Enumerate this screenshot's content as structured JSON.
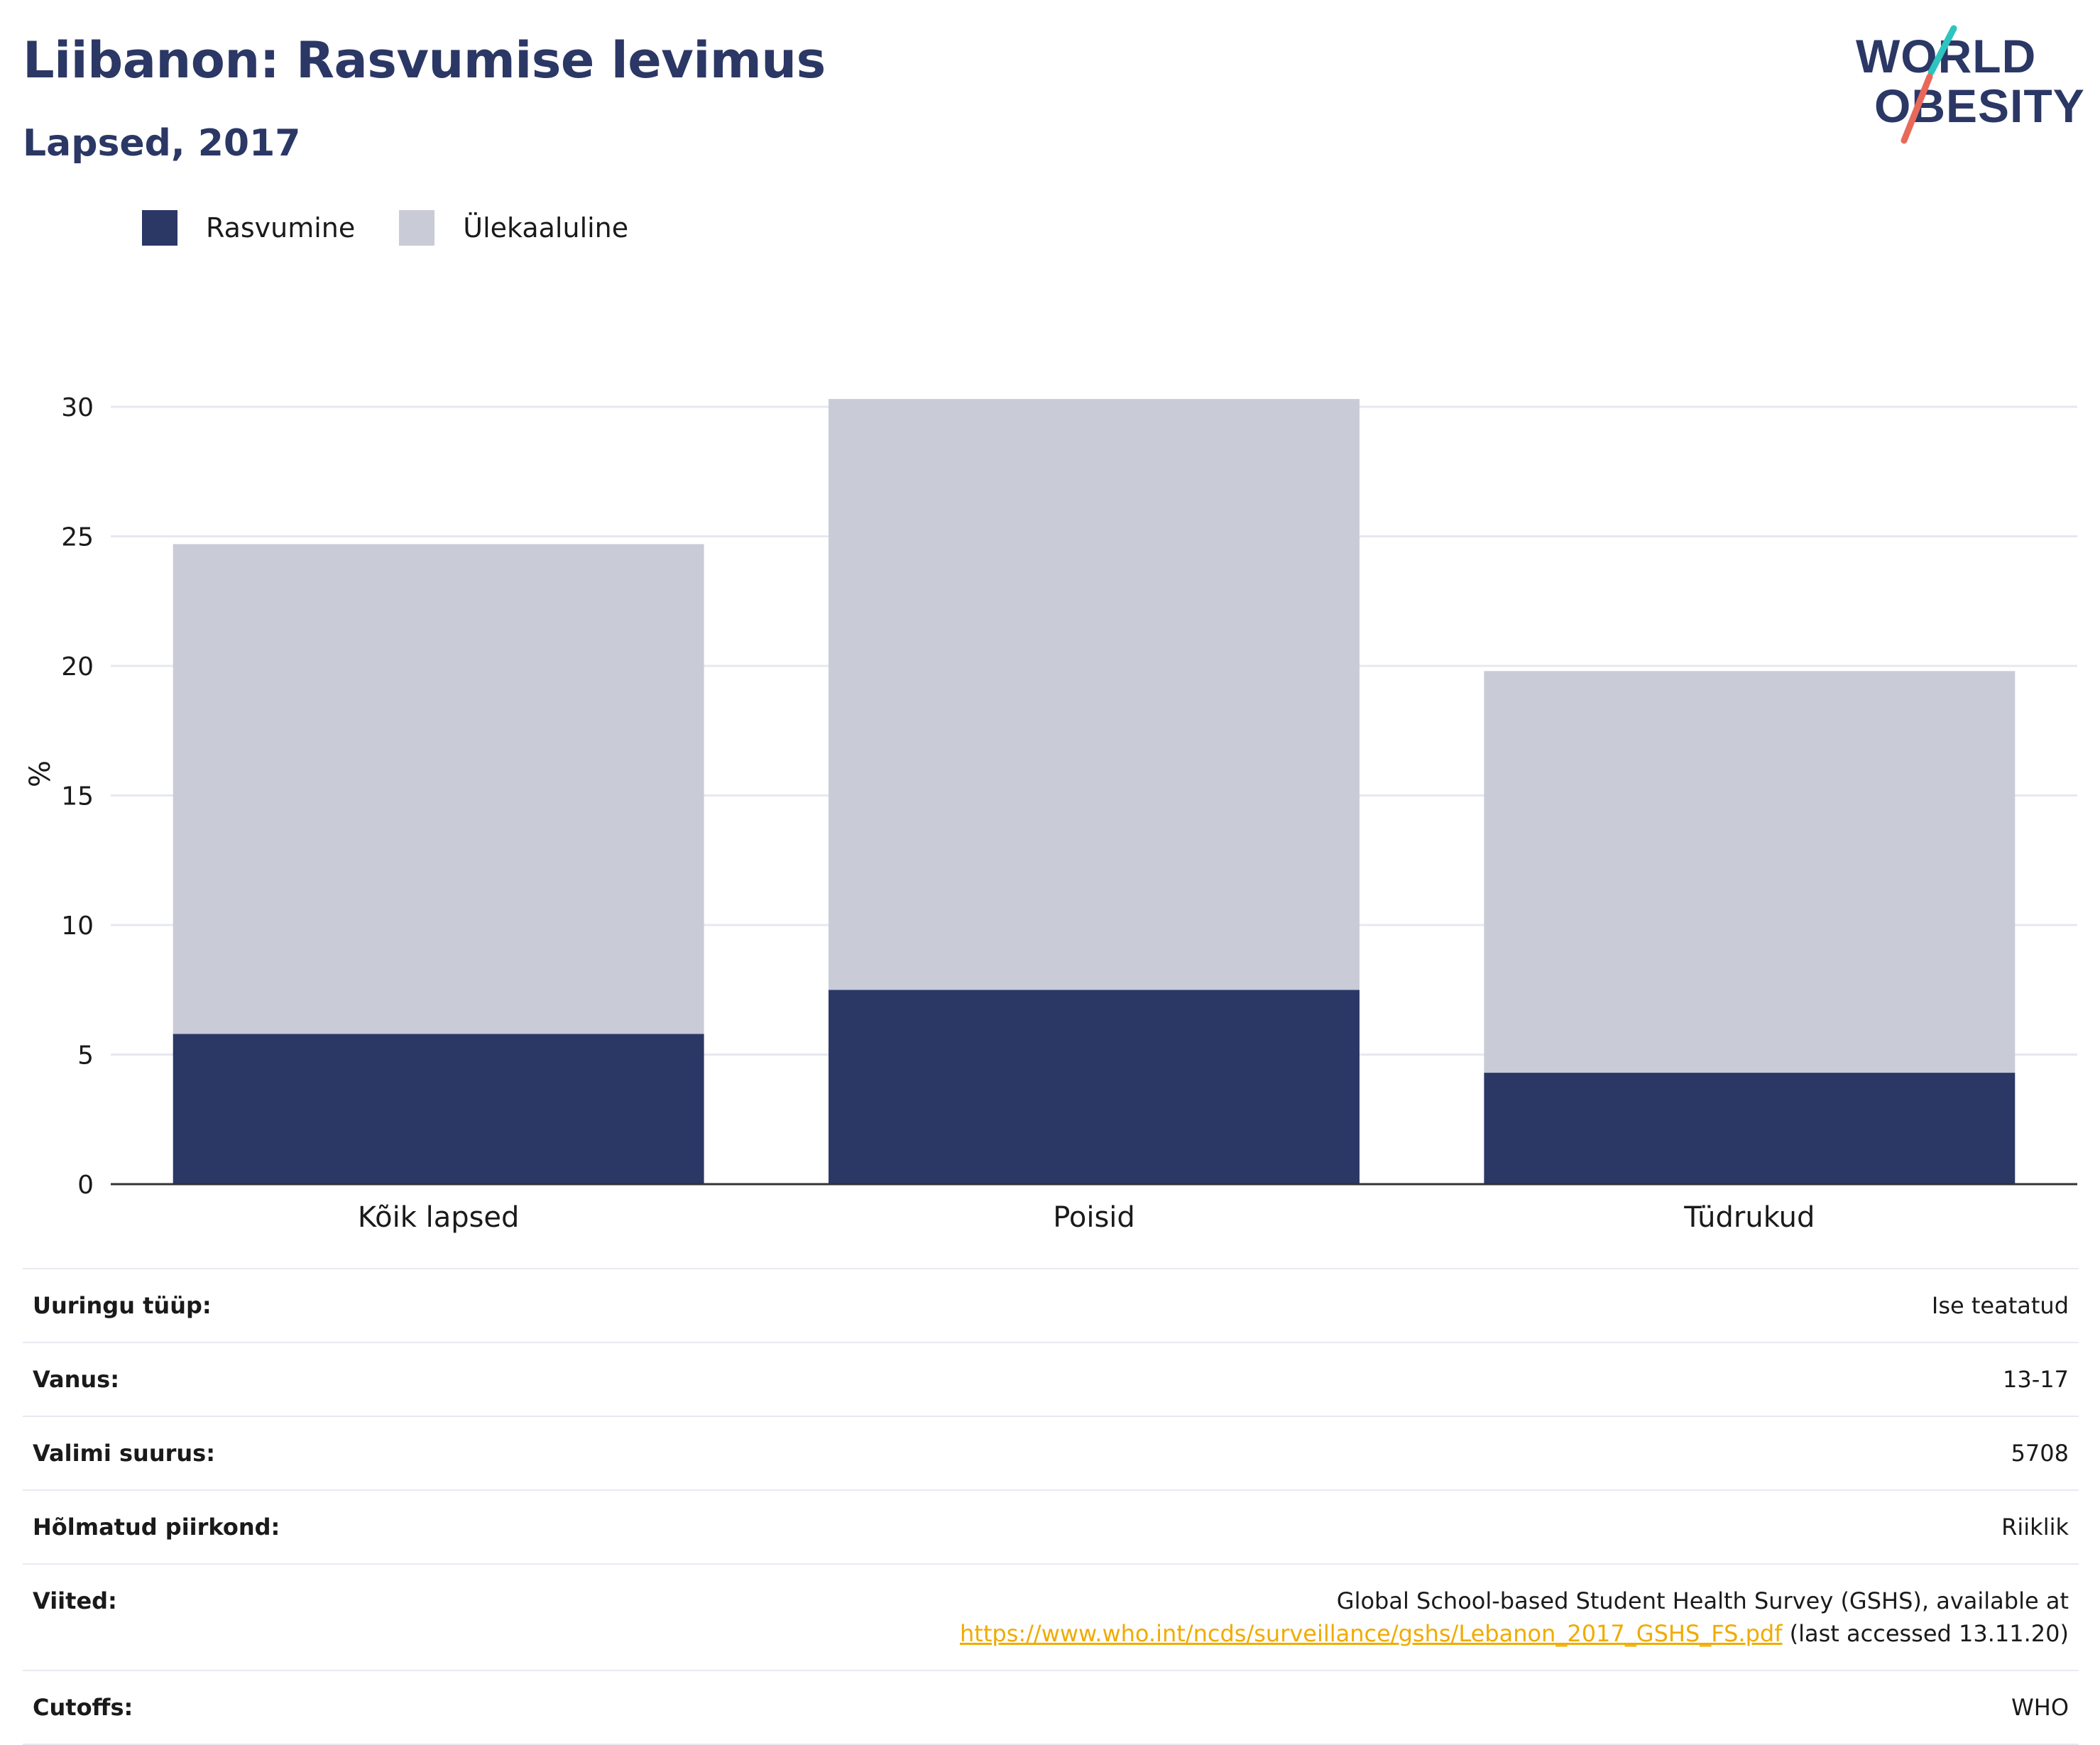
{
  "title": "Liibanon: Rasvumise levimus",
  "subtitle": "Lapsed, 2017",
  "logo": {
    "line1": "WORLD",
    "line2": "OBESITY"
  },
  "colors": {
    "title": "#2b3765",
    "obesity": "#2b3765",
    "overweight": "#c9cbd7",
    "grid": "#e6e8ef",
    "axis": "#333333",
    "link": "#f0ab00",
    "logo_teal": "#2ec4c0",
    "logo_coral": "#e8695a"
  },
  "legend": [
    {
      "label": "Rasvumine",
      "color": "#2b3765"
    },
    {
      "label": "Ülekaaluline",
      "color": "#c9cbd7"
    }
  ],
  "chart_data": {
    "type": "bar",
    "stacked": true,
    "categories": [
      "Kõik lapsed",
      "Poisid",
      "Tüdrukud"
    ],
    "series": [
      {
        "name": "Rasvumine",
        "values": [
          5.8,
          7.5,
          4.3
        ]
      },
      {
        "name": "Ülekaaluline",
        "values": [
          18.9,
          22.8,
          15.5
        ]
      }
    ],
    "ylabel": "%",
    "ylim": [
      0,
      30
    ],
    "yticks": [
      0,
      5,
      10,
      15,
      20,
      25,
      30
    ],
    "grid": true,
    "legend_position": "top-left"
  },
  "info": [
    {
      "label": "Uuringu tüüp:",
      "value": "Ise teatatud"
    },
    {
      "label": "Vanus:",
      "value": "13-17"
    },
    {
      "label": "Valimi suurus:",
      "value": "5708"
    },
    {
      "label": "Hõlmatud piirkond:",
      "value": "Riiklik"
    },
    {
      "label": "Viited:",
      "value_line1": "Global School-based Student Health Survey (GSHS), available at",
      "link": "https://www.who.int/ncds/surveillance/gshs/Lebanon_2017_GSHS_FS.pdf",
      "link_suffix": " (last accessed 13.11.20)"
    },
    {
      "label": "Cutoffs:",
      "value": "WHO"
    }
  ]
}
